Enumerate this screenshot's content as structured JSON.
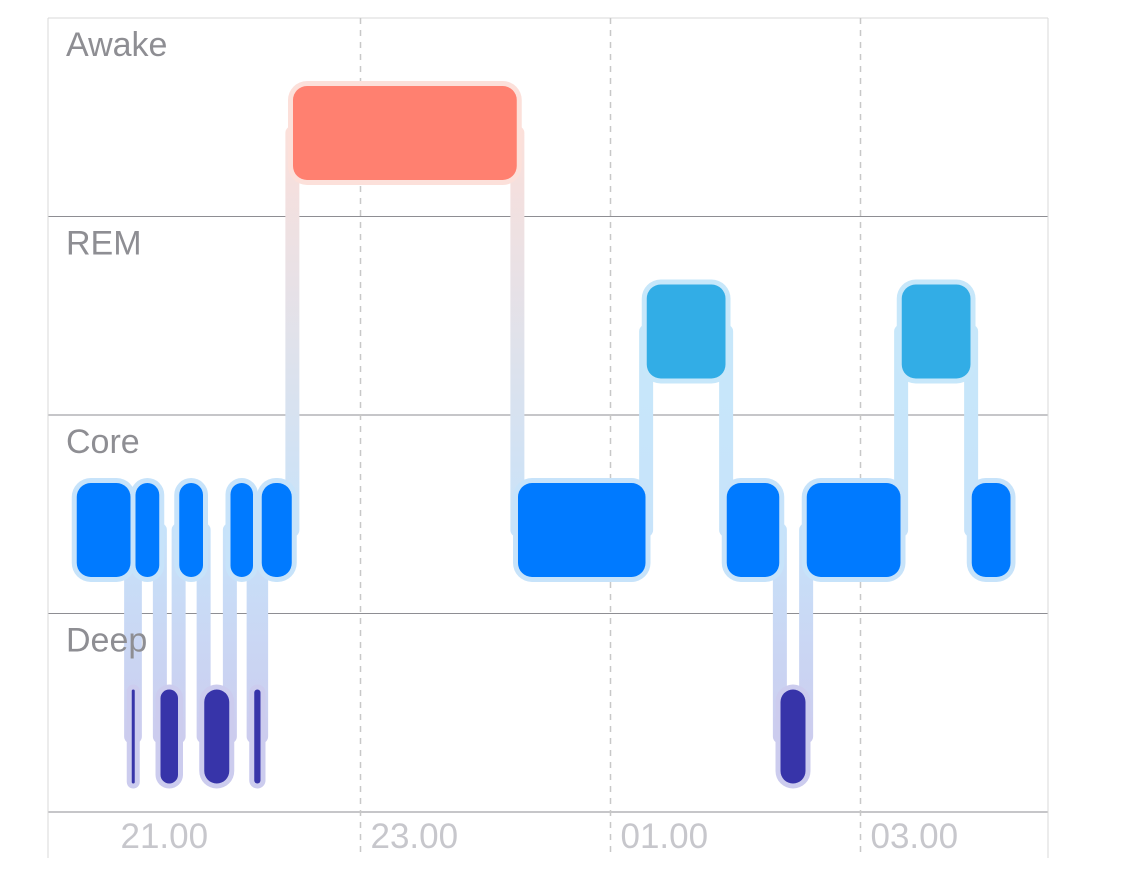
{
  "chart_data": {
    "type": "sleep-stages",
    "stages": [
      {
        "key": "awake",
        "label": "Awake",
        "color": "#FF8070",
        "halo": "#FCE0DA"
      },
      {
        "key": "rem",
        "label": "REM",
        "color": "#32ADE6",
        "halo": "#C7E7FA"
      },
      {
        "key": "core",
        "label": "Core",
        "color": "#007AFF",
        "halo": "#C7E3FA"
      },
      {
        "key": "deep",
        "label": "Deep",
        "color": "#3734A9",
        "halo": "#CCCCEE"
      }
    ],
    "x_ticks": [
      "21.00",
      "23.00",
      "01.00",
      "03.00"
    ],
    "x_range_hours": [
      20.5,
      28.5
    ],
    "grid": "vertical dashed at ticks, horizontal solid between stages",
    "segments": [
      {
        "stage": "core",
        "start": 20.73,
        "end": 21.16
      },
      {
        "stage": "deep",
        "start": 21.17,
        "end": 21.19
      },
      {
        "stage": "core",
        "start": 21.2,
        "end": 21.39
      },
      {
        "stage": "deep",
        "start": 21.4,
        "end": 21.54
      },
      {
        "stage": "core",
        "start": 21.55,
        "end": 21.74
      },
      {
        "stage": "deep",
        "start": 21.75,
        "end": 21.95
      },
      {
        "stage": "core",
        "start": 21.96,
        "end": 22.14
      },
      {
        "stage": "deep",
        "start": 22.15,
        "end": 22.2
      },
      {
        "stage": "core",
        "start": 22.21,
        "end": 22.45
      },
      {
        "stage": "awake",
        "start": 22.46,
        "end": 24.25
      },
      {
        "stage": "core",
        "start": 24.26,
        "end": 25.28
      },
      {
        "stage": "rem",
        "start": 25.29,
        "end": 25.92
      },
      {
        "stage": "core",
        "start": 25.93,
        "end": 26.35
      },
      {
        "stage": "deep",
        "start": 26.36,
        "end": 26.56
      },
      {
        "stage": "core",
        "start": 26.57,
        "end": 27.32
      },
      {
        "stage": "rem",
        "start": 27.33,
        "end": 27.88
      },
      {
        "stage": "core",
        "start": 27.89,
        "end": 28.2
      }
    ]
  }
}
